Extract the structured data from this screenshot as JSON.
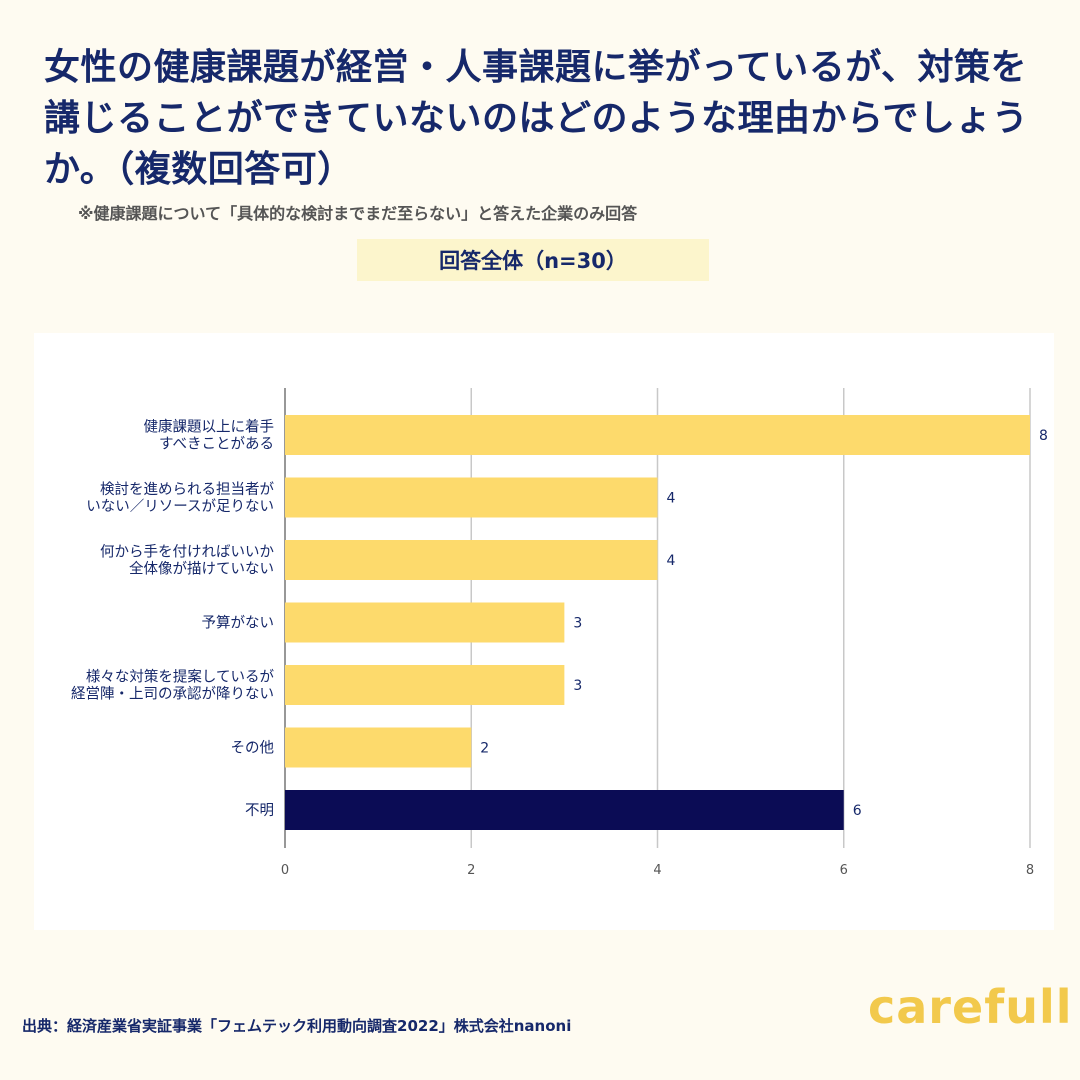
{
  "header": {
    "title": "女性の健康課題が経営・人事課題に挙がっているが、対策を講じることができていないのはどのような理由からでしょうか。（複数回答可）",
    "note": "※健康課題について「具体的な検討までまだ至らない」と答えた企業のみ回答",
    "subtitle": "回答全体（n=30）"
  },
  "chart_data": {
    "type": "bar",
    "orientation": "horizontal",
    "categories": [
      [
        "健康課題以上に着手",
        "すべきことがある"
      ],
      [
        "検討を進められる担当者が",
        "いない／リソースが足りない"
      ],
      [
        "何から手を付ければいいか",
        "全体像が描けていない"
      ],
      [
        "予算がない"
      ],
      [
        "様々な対策を提案しているが",
        "経営陣・上司の承認が降りない"
      ],
      [
        "その他"
      ],
      [
        "不明"
      ]
    ],
    "values": [
      8,
      4,
      4,
      3,
      3,
      2,
      6
    ],
    "value_labels": [
      "8",
      "4",
      "4",
      "3",
      "3",
      "2",
      "6"
    ],
    "bar_colors": [
      "#FDDA6C",
      "#FDDA6C",
      "#FDDA6C",
      "#FDDA6C",
      "#FDDA6C",
      "#FDDA6C",
      "#0B0C55"
    ],
    "xlim": [
      0,
      8
    ],
    "x_ticks": [
      "0",
      "2",
      "4",
      "6",
      "8"
    ],
    "grid": true,
    "title": "",
    "xlabel": "",
    "ylabel": ""
  },
  "footer": {
    "source": "出典：経済産業省実証事業「フェムテック利用動向調査2022」株式会社nanoni",
    "logo_text": "carefull"
  },
  "colors": {
    "background": "#FEFBF1",
    "title": "#16286A",
    "bar": "#FDDA6C",
    "bar_highlight": "#0B0C55",
    "logo": "#F2C94C"
  }
}
